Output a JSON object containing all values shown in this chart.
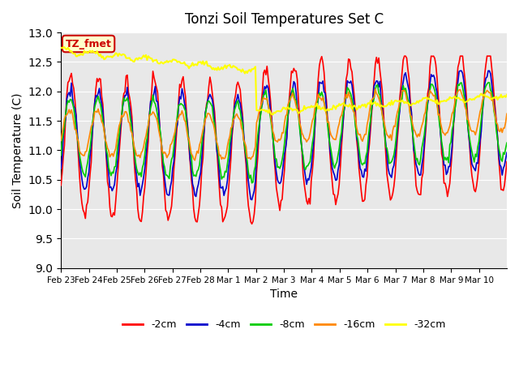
{
  "title": "Tonzi Soil Temperatures Set C",
  "xlabel": "Time",
  "ylabel": "Soil Temperature (C)",
  "ylim": [
    9.0,
    13.0
  ],
  "yticks": [
    9.0,
    9.5,
    10.0,
    10.5,
    11.0,
    11.5,
    12.0,
    12.5,
    13.0
  ],
  "bg_color": "#e8e8e8",
  "annotation_text": "TZ_fmet",
  "annotation_bg": "#ffffcc",
  "annotation_border": "#cc0000",
  "series_colors": {
    "-2cm": "#ff0000",
    "-4cm": "#0000cc",
    "-8cm": "#00cc00",
    "-16cm": "#ff8800",
    "-32cm": "#ffff00"
  },
  "legend_labels": [
    "-2cm",
    "-4cm",
    "-8cm",
    "-16cm",
    "-32cm"
  ],
  "xtick_labels": [
    "Feb 23",
    "Feb 24",
    "Feb 25",
    "Feb 26",
    "Feb 27",
    "Feb 28",
    "Mar 1",
    "Mar 2",
    "Mar 3",
    "Mar 4",
    "Mar 5",
    "Mar 6",
    "Mar 7",
    "Mar 8",
    "Mar 9",
    "Mar 10"
  ]
}
